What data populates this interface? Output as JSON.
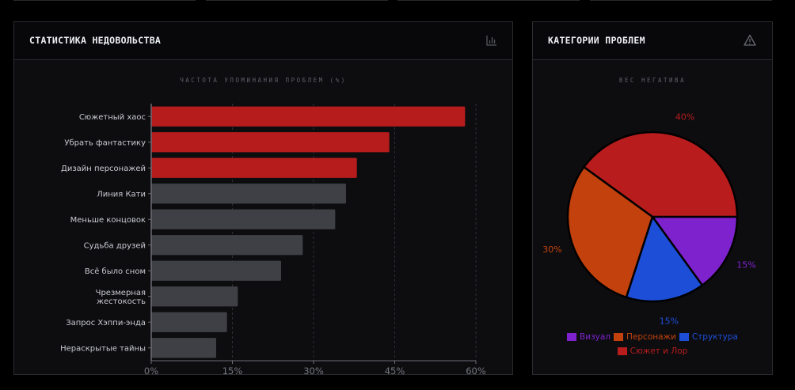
{
  "bar_panel": {
    "title": "СТАТИСТИКА НЕДОВОЛЬСТВА",
    "icon": "bar-chart-icon"
  },
  "pie_panel": {
    "title": "КАТЕГОРИИ ПРОБЛЕМ",
    "icon": "warning-icon"
  },
  "colors": {
    "highlight": "#b71c1c",
    "neutral": "#3f4046",
    "purple": "#7e22ce",
    "orange": "#c2410c",
    "blue": "#1d4ed8",
    "red": "#b91c1c"
  },
  "chart_data": [
    {
      "type": "bar",
      "orientation": "horizontal",
      "title": "ЧАСТОТА УПОМИНАНИЯ ПРОБЛЕМ (%)",
      "categories": [
        "Сюжетный хаос",
        "Убрать фантастику",
        "Дизайн персонажей",
        "Линия Кати",
        "Меньше концовок",
        "Судьба друзей",
        "Всё было сном",
        "Чрезмерная жестокость",
        "Запрос Хэппи-энда",
        "Нераскрытые тайны"
      ],
      "values": [
        58,
        44,
        38,
        36,
        34,
        28,
        24,
        16,
        14,
        12
      ],
      "highlighted": [
        true,
        true,
        true,
        false,
        false,
        false,
        false,
        false,
        false,
        false
      ],
      "xlim": [
        0,
        60
      ],
      "xticks": [
        "0%",
        "15%",
        "30%",
        "45%",
        "60%"
      ],
      "xtick_values": [
        0,
        15,
        30,
        45,
        60
      ],
      "grid": "vertical dashed",
      "xlabel": "",
      "ylabel": ""
    },
    {
      "type": "pie",
      "title": "ВЕС НЕГАТИВА",
      "slices": [
        {
          "label": "Визуал",
          "value": 15,
          "display": "15%",
          "color": "#7e22ce"
        },
        {
          "label": "Структура",
          "value": 15,
          "display": "15%",
          "color": "#1d4ed8"
        },
        {
          "label": "Персонажи",
          "value": 30,
          "display": "30%",
          "color": "#c2410c"
        },
        {
          "label": "Сюжет и Лор",
          "value": 40,
          "display": "40%",
          "color": "#b91c1c"
        }
      ],
      "legend_order": [
        "Визуал",
        "Персонажи",
        "Структура",
        "Сюжет и Лор"
      ],
      "legend": "bottom"
    }
  ]
}
